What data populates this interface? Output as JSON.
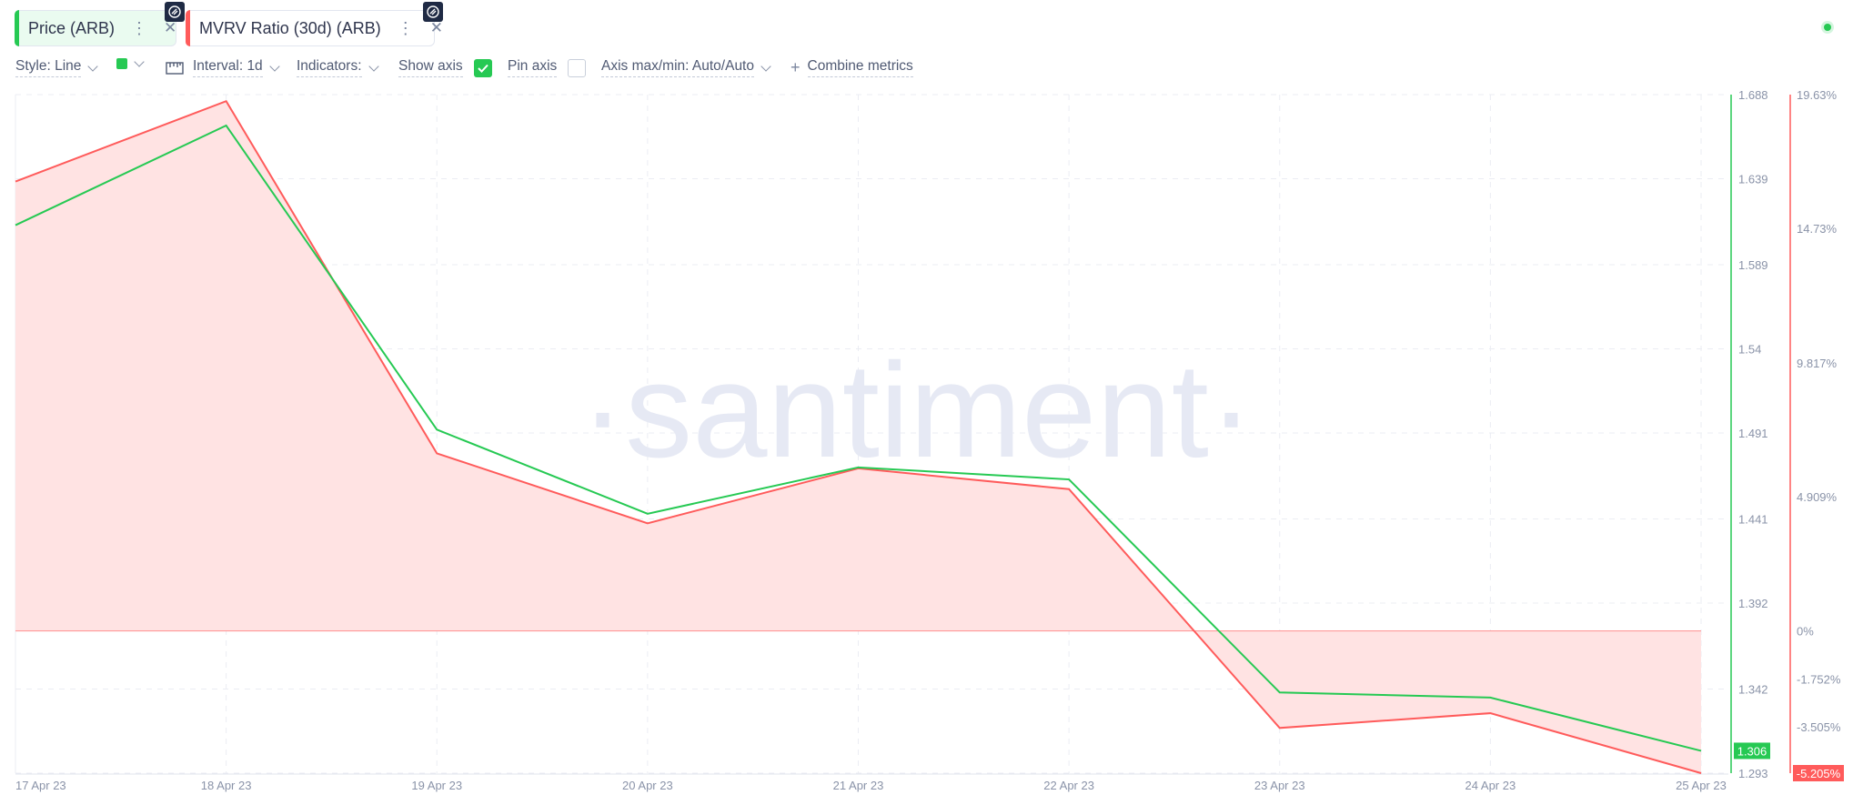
{
  "tabs": [
    {
      "label": "Price (ARB)",
      "color": "#26c953"
    },
    {
      "label": "MVRV Ratio (30d) (ARB)",
      "color": "#ff5b5b"
    }
  ],
  "toolbar": {
    "style": "Style: Line",
    "interval": "Interval: 1d",
    "indicators": "Indicators:",
    "show_axis": "Show axis",
    "show_axis_checked": true,
    "pin_axis": "Pin axis",
    "pin_axis_checked": false,
    "axis_maxmin": "Axis max/min: Auto/Auto",
    "combine": "Combine metrics"
  },
  "watermark": "·santiment·",
  "chart_data": {
    "type": "line",
    "x": [
      "17 Apr 23",
      "18 Apr 23",
      "19 Apr 23",
      "20 Apr 23",
      "21 Apr 23",
      "22 Apr 23",
      "23 Apr 23",
      "24 Apr 23",
      "25 Apr 23"
    ],
    "series": [
      {
        "name": "Price (ARB)",
        "color": "#26c953",
        "axis": "left",
        "values": [
          1.612,
          1.67,
          1.493,
          1.444,
          1.471,
          1.464,
          1.34,
          1.337,
          1.306
        ]
      },
      {
        "name": "MVRV Ratio (30d) (ARB)",
        "color": "#ff5b5b",
        "axis": "right",
        "fill": "area",
        "values": [
          16.45,
          19.39,
          6.5,
          3.94,
          5.95,
          5.19,
          -3.55,
          -3.01,
          -5.205
        ]
      }
    ],
    "y_left": {
      "range": [
        1.293,
        1.688
      ],
      "ticks": [
        "1.688",
        "1.639",
        "1.589",
        "1.54",
        "1.491",
        "1.441",
        "1.392",
        "1.342",
        "1.293"
      ]
    },
    "y_right": {
      "range": [
        -5.205,
        19.63
      ],
      "ticks": [
        "19.63%",
        "14.73%",
        "9.817%",
        "4.909%",
        "0%",
        "-1.752%",
        "-3.505%"
      ]
    },
    "current": {
      "left": "1.306",
      "right": "-5.205%"
    },
    "grid": true
  }
}
